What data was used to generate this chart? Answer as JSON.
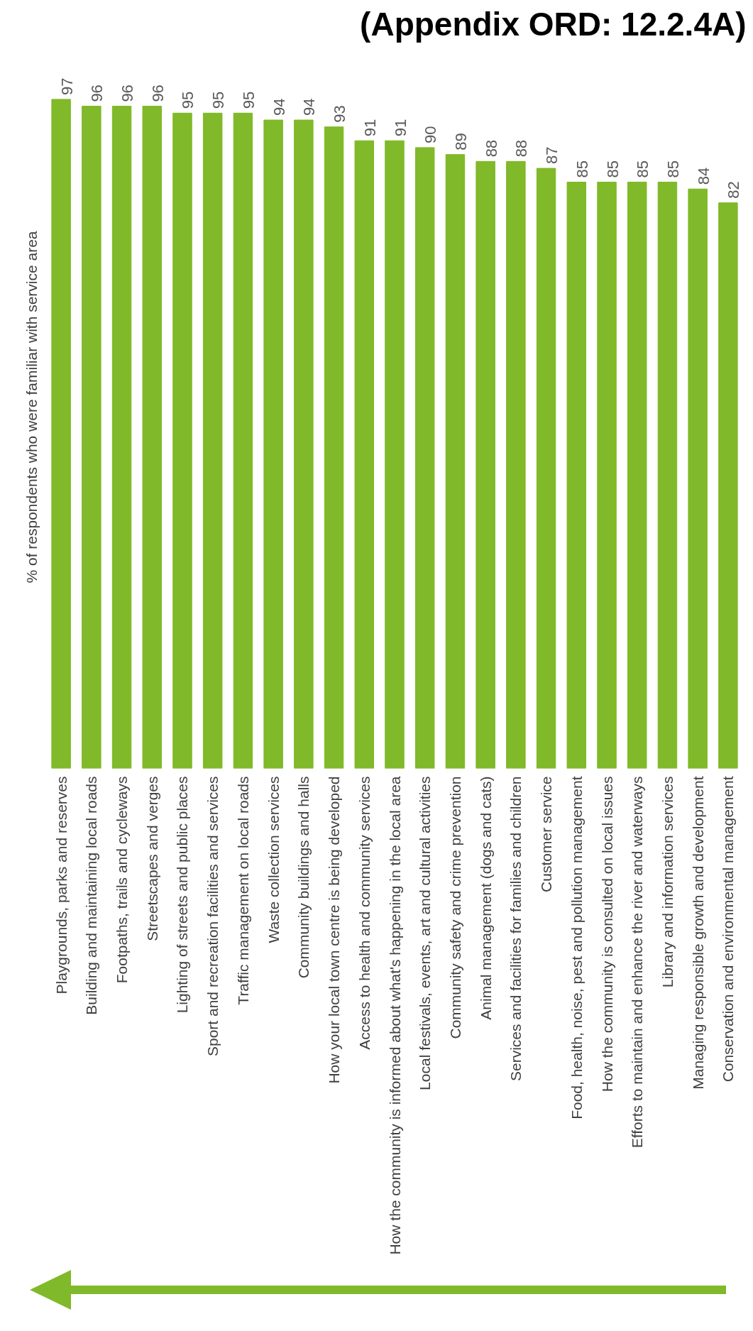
{
  "chart_data": {
    "type": "bar",
    "title": "(Appendix ORD: 12.2.4A)",
    "ylabel": "% of respondents who were familiar with service area",
    "categories": [
      "Playgrounds, parks and reserves",
      "Building and maintaining local roads",
      "Footpaths, trails and cycleways",
      "Streetscapes and verges",
      "Lighting of streets and public places",
      "Sport and recreation facilities and services",
      "Traffic management on local roads",
      "Waste collection services",
      "Community buildings and halls",
      "How your local town centre is being developed",
      "Access to health and community services",
      "How the community is informed about what's happening in the local area",
      "Local festivals, events, art and cultural activities",
      "Community safety and crime prevention",
      "Animal management (dogs and cats)",
      "Services and facilities for families and children",
      "Customer service",
      "Food, health, noise, pest and pollution management",
      "How the community is consulted on local issues",
      "Efforts to maintain and enhance the river and waterways",
      "Library and information services",
      "Managing responsible growth and development",
      "Conservation and environmental management"
    ],
    "values": [
      97,
      96,
      96,
      96,
      95,
      95,
      95,
      94,
      94,
      93,
      91,
      91,
      90,
      89,
      88,
      88,
      87,
      85,
      85,
      85,
      85,
      84,
      82
    ],
    "color": "#80b929",
    "data_labels": true
  }
}
